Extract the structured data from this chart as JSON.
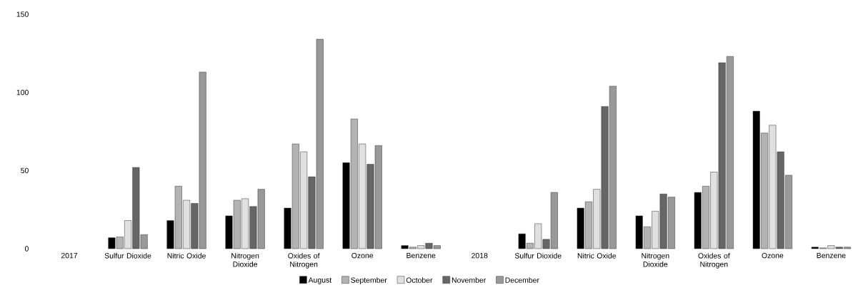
{
  "chart_data": {
    "type": "bar",
    "categories": [
      "2017",
      "Sulfur Dioxide",
      "Nitric Oxide",
      "Nitrogen Dioxide",
      "Oxides of Nitrogen",
      "Ozone",
      "Benzene",
      "2018",
      "Sulfur Dioxide",
      "Nitric Oxide",
      "Nitrogen Dioxide",
      "Oxides of Nitrogen",
      "Ozone",
      "Benzene"
    ],
    "series": [
      {
        "name": "August",
        "color": "#000000",
        "values": [
          null,
          7,
          18,
          21,
          26,
          55,
          2,
          null,
          9.5,
          26,
          21,
          36,
          88,
          1
        ]
      },
      {
        "name": "September",
        "color": "#b3b3b3",
        "values": [
          null,
          7.5,
          40,
          31,
          67,
          83,
          1,
          null,
          3.5,
          30,
          14,
          40,
          74,
          0.5
        ]
      },
      {
        "name": "October",
        "color": "#e0e0e0",
        "values": [
          null,
          18,
          31,
          32,
          62,
          67,
          2,
          null,
          16,
          38,
          24,
          49,
          79,
          2
        ]
      },
      {
        "name": "November",
        "color": "#666666",
        "values": [
          null,
          52,
          29,
          27,
          46,
          54,
          3.5,
          null,
          6,
          91,
          35,
          119,
          62,
          1
        ]
      },
      {
        "name": "December",
        "color": "#999999",
        "values": [
          null,
          9,
          113,
          38,
          134,
          66,
          2,
          null,
          36,
          104,
          33,
          123,
          47,
          1
        ]
      }
    ],
    "ylim": [
      0,
      150
    ],
    "yticks": [
      0,
      50,
      100,
      150
    ],
    "legend": "bottom"
  }
}
